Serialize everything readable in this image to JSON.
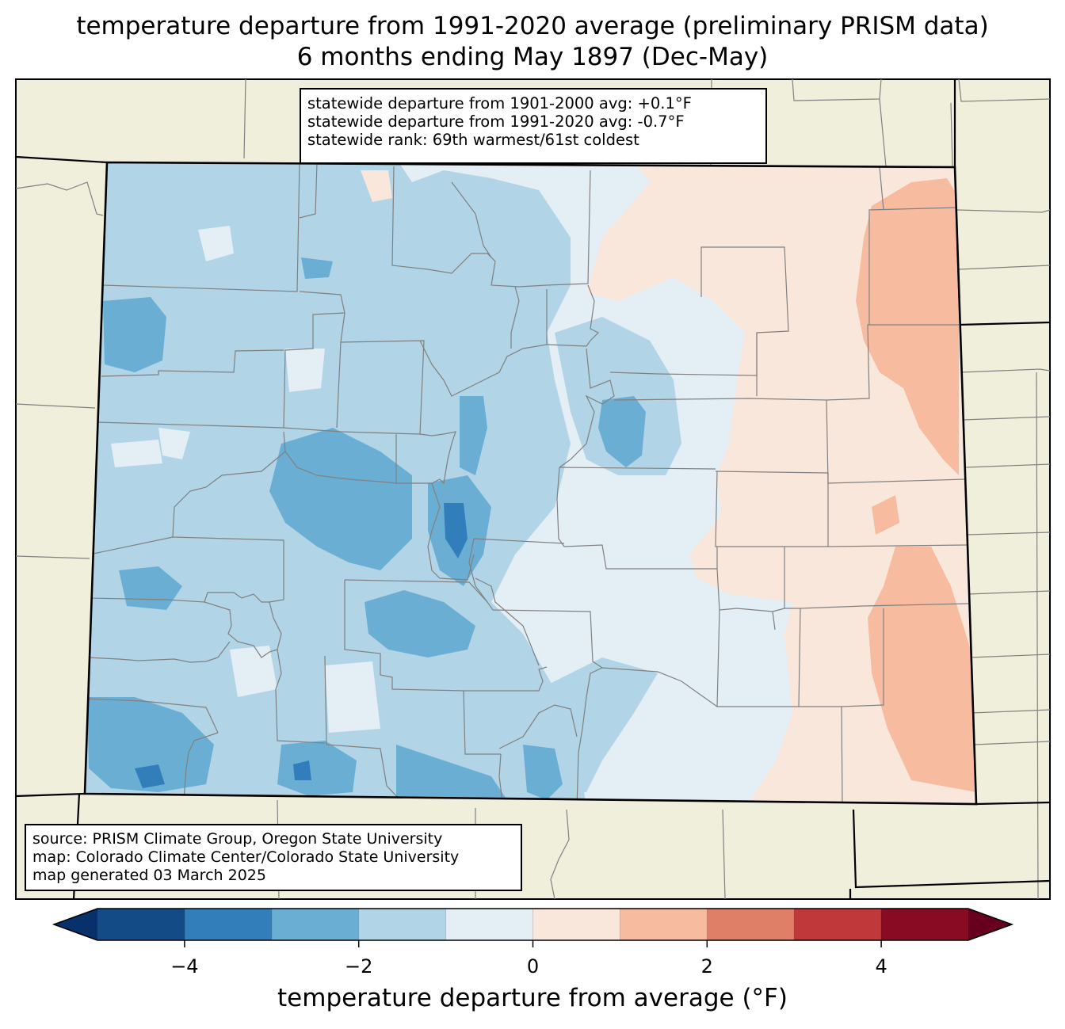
{
  "title": {
    "line1": "temperature departure from 1991-2020 average (preliminary PRISM data)",
    "line2": "6 months ending May 1897 (Dec-May)"
  },
  "stats": {
    "line1": "statewide departure from 1901-2000 avg: +0.1°F",
    "line2": "statewide departure from 1991-2020 avg: -0.7°F",
    "line3": "statewide rank: 69th warmest/61st coldest"
  },
  "source": {
    "line1": "source: PRISM Climate Group, Oregon State University",
    "line2": "map: Colorado Climate Center/Colorado State University",
    "line3": "map generated 03 March 2025"
  },
  "colorbar": {
    "title": "temperature departure from average (°F)",
    "min": -5,
    "max": 5,
    "extend": "both",
    "tick_labels": [
      "−4",
      "−2",
      "0",
      "2",
      "4"
    ],
    "tick_values": [
      -4,
      -2,
      0,
      2,
      4
    ],
    "colors": [
      "#08306b",
      "#134b87",
      "#327eba",
      "#6aaed3",
      "#b1d4e7",
      "#e4eef5",
      "#fae7dc",
      "#f7bba0",
      "#e07f68",
      "#c0383a",
      "#880a23",
      "#67001f"
    ]
  },
  "map_colors": {
    "land": "#f0efdc",
    "water_boundary": "#808080",
    "state_border": "#000000"
  }
}
